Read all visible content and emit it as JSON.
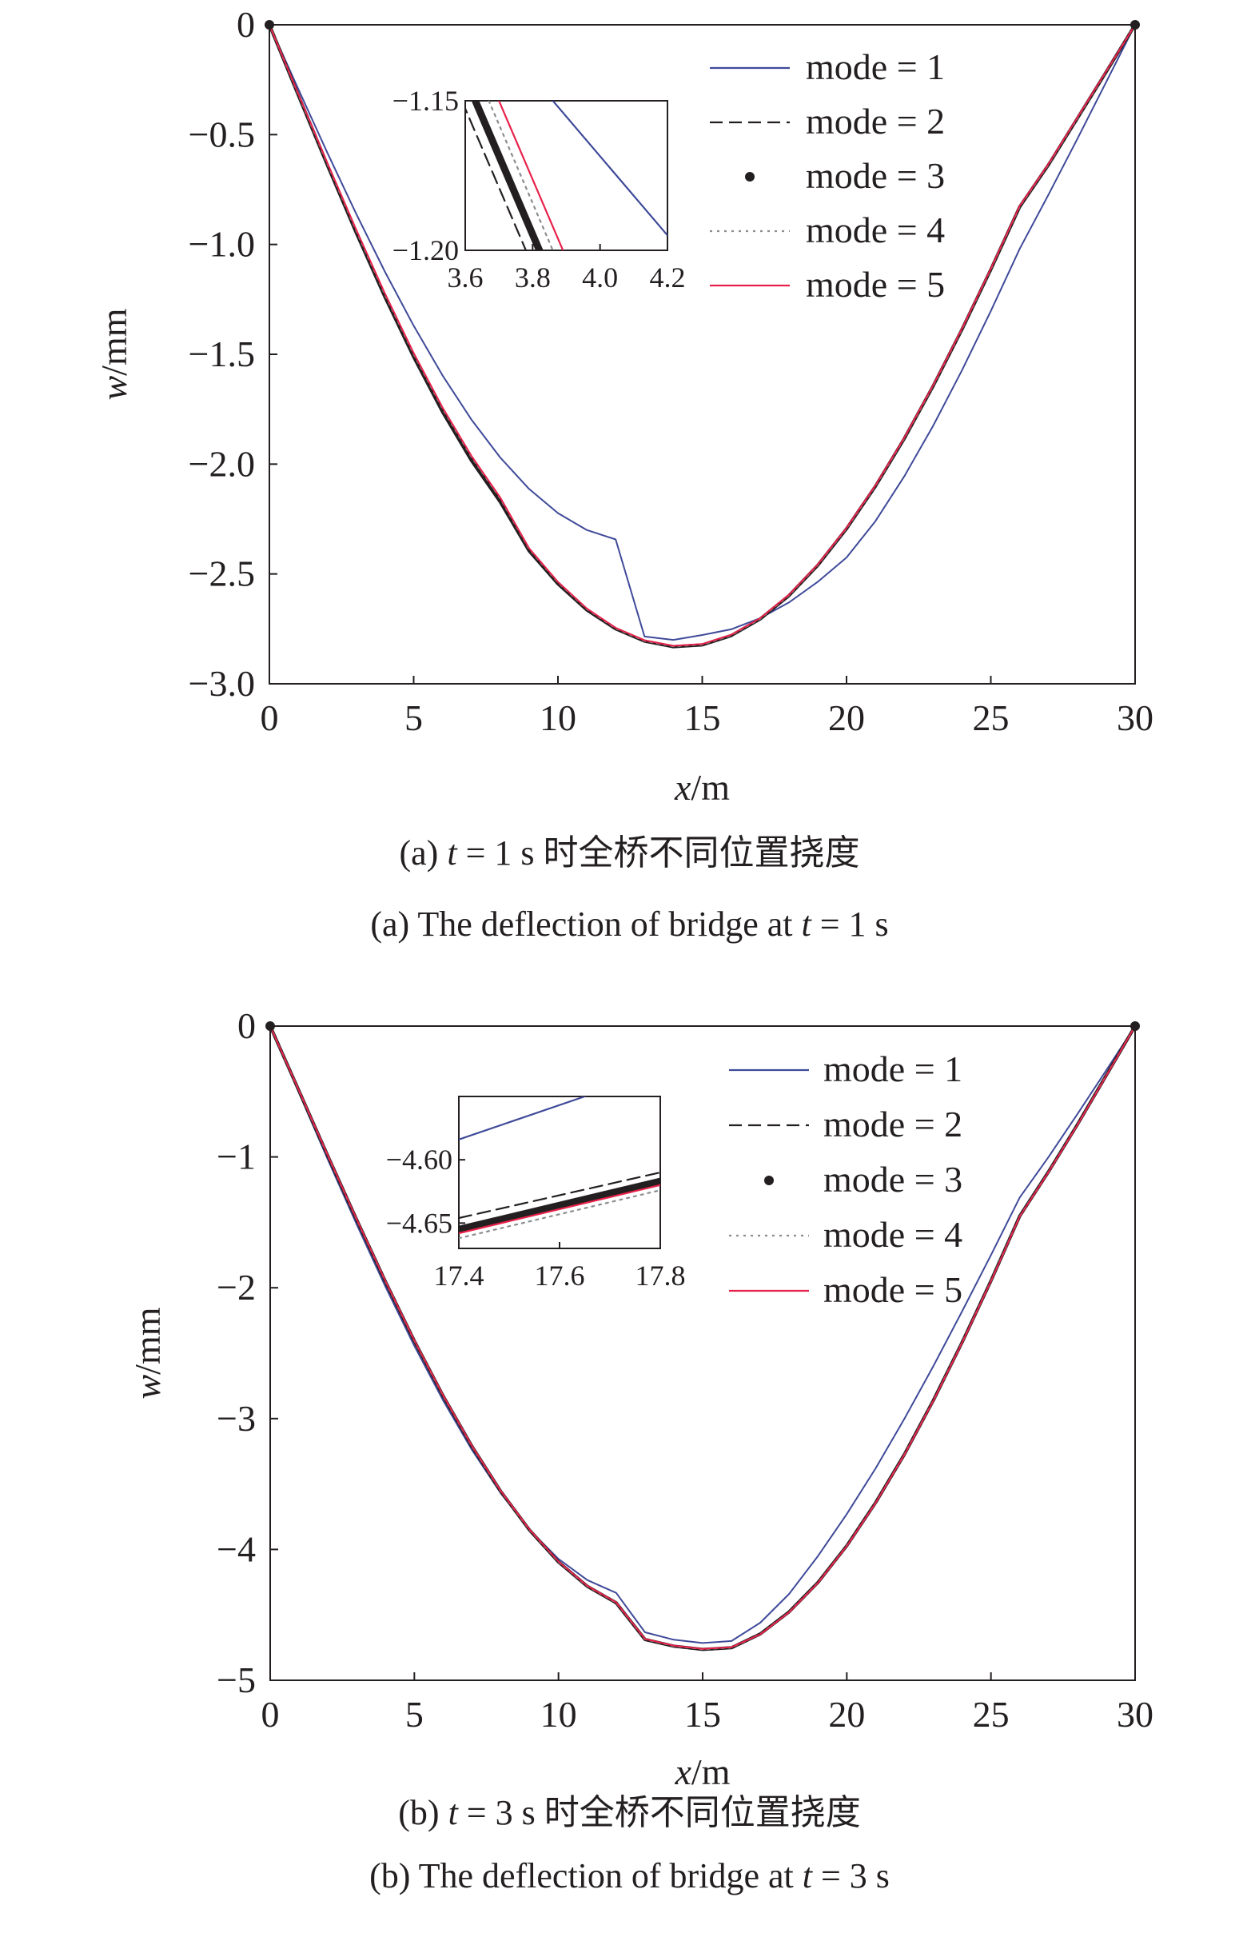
{
  "figure": {
    "captions": [
      {
        "zh_prefix": "(a) ",
        "zh_var": "t",
        "zh_suffix": " = 1 s 时全桥不同位置挠度",
        "en_prefix": "(a) The deflection of bridge at ",
        "en_var": "t",
        "en_suffix": " = 1 s"
      },
      {
        "zh_prefix": "(b) ",
        "zh_var": "t",
        "zh_suffix": " = 3 s 时全桥不同位置挠度",
        "en_prefix": "(b) The deflection of bridge at ",
        "en_var": "t",
        "en_suffix": " = 3 s"
      }
    ]
  },
  "chart_data": [
    {
      "type": "line",
      "xlabel_var": "x",
      "xlabel_unit": "/m",
      "ylabel_var": "w",
      "ylabel_unit": "/mm",
      "xlim": [
        0,
        30
      ],
      "ylim": [
        -3.0,
        0
      ],
      "xticks": [
        0,
        5,
        10,
        15,
        20,
        25,
        30
      ],
      "xtick_labels": [
        "0",
        "5",
        "10",
        "15",
        "20",
        "25",
        "30"
      ],
      "yticks": [
        0,
        -0.5,
        -1.0,
        -1.5,
        -2.0,
        -2.5,
        -3.0
      ],
      "ytick_labels": [
        "0",
        "−0.5",
        "−1.0",
        "−1.5",
        "−2.0",
        "−2.5",
        "−3.0"
      ],
      "legend_position": "top-right",
      "series": [
        {
          "name": "mode = 1",
          "style": "solid",
          "color": "#3f4a99",
          "x": [
            0,
            1,
            2,
            3,
            4,
            5,
            6,
            7,
            8,
            9,
            10,
            11,
            12,
            13,
            14,
            15,
            16,
            17,
            18,
            19,
            20,
            21,
            22,
            23,
            24,
            25,
            26,
            27,
            28,
            29,
            30
          ],
          "y": [
            0,
            -0.292,
            -0.58,
            -0.858,
            -1.123,
            -1.37,
            -1.596,
            -1.797,
            -1.97,
            -2.113,
            -2.223,
            -2.3,
            -2.343,
            -2.785,
            -2.8,
            -2.778,
            -2.752,
            -2.702,
            -2.63,
            -2.536,
            -2.425,
            -2.26,
            -2.056,
            -1.826,
            -1.573,
            -1.303,
            -1.02,
            -0.773,
            -0.519,
            -0.26,
            0
          ]
        },
        {
          "name": "mode = 2",
          "style": "dashed",
          "color": "#231f20",
          "x": [
            0,
            1,
            2,
            3,
            4,
            5,
            6,
            7,
            8,
            9,
            10,
            11,
            12,
            13,
            14,
            15,
            16,
            17,
            18,
            19,
            20,
            21,
            22,
            23,
            24,
            25,
            26,
            27,
            28,
            29,
            30
          ],
          "y": [
            0,
            -0.318,
            -0.632,
            -0.938,
            -1.23,
            -1.502,
            -1.75,
            -1.97,
            -2.158,
            -2.387,
            -2.54,
            -2.66,
            -2.748,
            -2.805,
            -2.83,
            -2.822,
            -2.78,
            -2.705,
            -2.598,
            -2.46,
            -2.293,
            -2.1,
            -1.883,
            -1.644,
            -1.386,
            -1.113,
            -0.828,
            -0.636,
            -0.425,
            -0.213,
            0
          ]
        },
        {
          "name": "mode = 3",
          "style": "thick-dots",
          "color": "#231f20",
          "x": [
            0,
            1,
            2,
            3,
            4,
            5,
            6,
            7,
            8,
            9,
            10,
            11,
            12,
            13,
            14,
            15,
            16,
            17,
            18,
            19,
            20,
            21,
            22,
            23,
            24,
            25,
            26,
            27,
            28,
            29,
            30
          ],
          "y": [
            0,
            -0.32,
            -0.636,
            -0.944,
            -1.238,
            -1.512,
            -1.762,
            -1.983,
            -2.172,
            -2.395,
            -2.545,
            -2.664,
            -2.75,
            -2.806,
            -2.831,
            -2.823,
            -2.781,
            -2.706,
            -2.599,
            -2.461,
            -2.294,
            -2.101,
            -1.884,
            -1.645,
            -1.387,
            -1.114,
            -0.829,
            -0.637,
            -0.426,
            -0.214,
            0
          ]
        },
        {
          "name": "mode = 4",
          "style": "dotted",
          "color": "#8a8c8e",
          "x": [
            0,
            1,
            2,
            3,
            4,
            5,
            6,
            7,
            8,
            9,
            10,
            11,
            12,
            13,
            14,
            15,
            16,
            17,
            18,
            19,
            20,
            21,
            22,
            23,
            24,
            25,
            26,
            27,
            28,
            29,
            30
          ],
          "y": [
            0,
            -0.316,
            -0.629,
            -0.934,
            -1.226,
            -1.498,
            -1.746,
            -1.966,
            -2.155,
            -2.385,
            -2.538,
            -2.659,
            -2.747,
            -2.804,
            -2.829,
            -2.821,
            -2.779,
            -2.704,
            -2.597,
            -2.459,
            -2.292,
            -2.099,
            -1.882,
            -1.643,
            -1.385,
            -1.112,
            -0.827,
            -0.635,
            -0.424,
            -0.212,
            0
          ]
        },
        {
          "name": "mode = 5",
          "style": "solid",
          "color": "#e8214a",
          "x": [
            0,
            1,
            2,
            3,
            4,
            5,
            6,
            7,
            8,
            9,
            10,
            11,
            12,
            13,
            14,
            15,
            16,
            17,
            18,
            19,
            20,
            21,
            22,
            23,
            24,
            25,
            26,
            27,
            28,
            29,
            30
          ],
          "y": [
            0,
            -0.314,
            -0.626,
            -0.93,
            -1.222,
            -1.494,
            -1.742,
            -1.962,
            -2.152,
            -2.383,
            -2.536,
            -2.657,
            -2.745,
            -2.802,
            -2.827,
            -2.819,
            -2.777,
            -2.702,
            -2.595,
            -2.457,
            -2.29,
            -2.097,
            -1.88,
            -1.641,
            -1.383,
            -1.11,
            -0.825,
            -0.633,
            -0.422,
            -0.211,
            0
          ]
        }
      ],
      "inset": {
        "xlim": [
          3.6,
          4.2
        ],
        "ylim": [
          -1.2,
          -1.15
        ],
        "xticks": [
          3.6,
          3.8,
          4.0,
          4.2
        ],
        "xtick_labels": [
          "3.6",
          "3.8",
          "4.0",
          "4.2"
        ],
        "yticks": [
          -1.15,
          -1.2
        ],
        "ytick_labels": [
          "−1.15",
          "−1.20"
        ],
        "series": [
          {
            "name": "mode = 1",
            "x": [
              3.86,
              4.2
            ],
            "y": [
              -1.15,
              -1.195
            ]
          },
          {
            "name": "mode = 2",
            "x": [
              3.59,
              3.78
            ],
            "y": [
              -1.15,
              -1.2
            ]
          },
          {
            "name": "mode = 3",
            "x": [
              3.63,
              3.82
            ],
            "y": [
              -1.15,
              -1.2
            ]
          },
          {
            "name": "mode = 4",
            "x": [
              3.67,
              3.86
            ],
            "y": [
              -1.15,
              -1.2
            ]
          },
          {
            "name": "mode = 5",
            "x": [
              3.7,
              3.89
            ],
            "y": [
              -1.15,
              -1.2
            ]
          }
        ]
      }
    },
    {
      "type": "line",
      "xlabel_var": "x",
      "xlabel_unit": "/m",
      "ylabel_var": "w",
      "ylabel_unit": "/mm",
      "xlim": [
        0,
        30
      ],
      "ylim": [
        -5,
        0
      ],
      "xticks": [
        0,
        5,
        10,
        15,
        20,
        25,
        30
      ],
      "xtick_labels": [
        "0",
        "5",
        "10",
        "15",
        "20",
        "25",
        "30"
      ],
      "yticks": [
        0,
        -1,
        -2,
        -3,
        -4,
        -5
      ],
      "ytick_labels": [
        "0",
        "−1",
        "−2",
        "−3",
        "−4",
        "−5"
      ],
      "legend_position": "top-right",
      "series": [
        {
          "name": "mode = 1",
          "style": "solid",
          "color": "#3f4a99",
          "x": [
            0,
            1,
            2,
            3,
            4,
            5,
            6,
            7,
            8,
            9,
            10,
            11,
            12,
            13,
            14,
            15,
            16,
            17,
            18,
            19,
            20,
            21,
            22,
            23,
            24,
            25,
            26,
            27,
            28,
            29,
            30
          ],
          "y": [
            0,
            -0.512,
            -1.02,
            -1.516,
            -1.993,
            -2.444,
            -2.862,
            -3.24,
            -3.571,
            -3.851,
            -4.073,
            -4.234,
            -4.332,
            -4.633,
            -4.69,
            -4.715,
            -4.7,
            -4.56,
            -4.34,
            -4.05,
            -3.73,
            -3.38,
            -3.0,
            -2.6,
            -2.18,
            -1.75,
            -1.31,
            -1.0,
            -0.672,
            -0.338,
            0
          ]
        },
        {
          "name": "mode = 2",
          "style": "dashed",
          "color": "#231f20",
          "x": [
            0,
            1,
            2,
            3,
            4,
            5,
            6,
            7,
            8,
            9,
            10,
            11,
            12,
            13,
            14,
            15,
            16,
            17,
            18,
            19,
            20,
            21,
            22,
            23,
            24,
            25,
            26,
            27,
            28,
            29,
            30
          ],
          "y": [
            0,
            -0.5,
            -0.998,
            -1.487,
            -1.962,
            -2.413,
            -2.835,
            -3.22,
            -3.563,
            -3.858,
            -4.1,
            -4.285,
            -4.41,
            -4.69,
            -4.74,
            -4.765,
            -4.752,
            -4.645,
            -4.475,
            -4.25,
            -3.97,
            -3.64,
            -3.27,
            -2.86,
            -2.415,
            -1.945,
            -1.45,
            -1.11,
            -0.75,
            -0.375,
            0
          ]
        },
        {
          "name": "mode = 3",
          "style": "thick-dots",
          "color": "#231f20",
          "x": [
            0,
            1,
            2,
            3,
            4,
            5,
            6,
            7,
            8,
            9,
            10,
            11,
            12,
            13,
            14,
            15,
            16,
            17,
            18,
            19,
            20,
            21,
            22,
            23,
            24,
            25,
            26,
            27,
            28,
            29,
            30
          ],
          "y": [
            0,
            -0.496,
            -0.992,
            -1.48,
            -1.954,
            -2.405,
            -2.827,
            -3.213,
            -3.557,
            -3.853,
            -4.096,
            -4.282,
            -4.408,
            -4.688,
            -4.739,
            -4.764,
            -4.751,
            -4.646,
            -4.477,
            -4.252,
            -3.972,
            -3.642,
            -3.272,
            -2.862,
            -2.417,
            -1.947,
            -1.452,
            -1.112,
            -0.752,
            -0.377,
            0
          ]
        },
        {
          "name": "mode = 4",
          "style": "dotted",
          "color": "#8a8c8e",
          "x": [
            0,
            1,
            2,
            3,
            4,
            5,
            6,
            7,
            8,
            9,
            10,
            11,
            12,
            13,
            14,
            15,
            16,
            17,
            18,
            19,
            20,
            21,
            22,
            23,
            24,
            25,
            26,
            27,
            28,
            29,
            30
          ],
          "y": [
            0,
            -0.494,
            -0.99,
            -1.478,
            -1.952,
            -2.403,
            -2.825,
            -3.211,
            -3.555,
            -3.851,
            -4.094,
            -4.28,
            -4.406,
            -4.686,
            -4.737,
            -4.762,
            -4.749,
            -4.648,
            -4.479,
            -4.254,
            -3.974,
            -3.644,
            -3.274,
            -2.864,
            -2.419,
            -1.949,
            -1.454,
            -1.114,
            -0.754,
            -0.379,
            0
          ]
        },
        {
          "name": "mode = 5",
          "style": "solid",
          "color": "#e8214a",
          "x": [
            0,
            1,
            2,
            3,
            4,
            5,
            6,
            7,
            8,
            9,
            10,
            11,
            12,
            13,
            14,
            15,
            16,
            17,
            18,
            19,
            20,
            21,
            22,
            23,
            24,
            25,
            26,
            27,
            28,
            29,
            30
          ],
          "y": [
            0,
            -0.493,
            -0.988,
            -1.476,
            -1.95,
            -2.401,
            -2.823,
            -3.209,
            -3.553,
            -3.849,
            -4.092,
            -4.278,
            -4.404,
            -4.684,
            -4.735,
            -4.76,
            -4.747,
            -4.649,
            -4.48,
            -4.255,
            -3.975,
            -3.645,
            -3.275,
            -2.865,
            -2.42,
            -1.95,
            -1.455,
            -1.115,
            -0.755,
            -0.38,
            0
          ]
        }
      ],
      "inset": {
        "xlim": [
          17.4,
          17.8
        ],
        "ylim": [
          -4.67,
          -4.55
        ],
        "xticks": [
          17.4,
          17.6,
          17.8
        ],
        "xtick_labels": [
          "17.4",
          "17.6",
          "17.8"
        ],
        "yticks": [
          -4.6,
          -4.65
        ],
        "ytick_labels": [
          "−4.60",
          "−4.65"
        ],
        "series": [
          {
            "name": "mode = 1",
            "x": [
              17.4,
              17.65
            ],
            "y": [
              -4.584,
              -4.55
            ]
          },
          {
            "name": "mode = 2",
            "x": [
              17.4,
              17.8
            ],
            "y": [
              -4.646,
              -4.61
            ]
          },
          {
            "name": "mode = 3",
            "x": [
              17.4,
              17.8
            ],
            "y": [
              -4.655,
              -4.617
            ]
          },
          {
            "name": "mode = 4",
            "x": [
              17.4,
              17.8
            ],
            "y": [
              -4.662,
              -4.624
            ]
          },
          {
            "name": "mode = 5",
            "x": [
              17.4,
              17.8
            ],
            "y": [
              -4.658,
              -4.62
            ]
          }
        ]
      }
    }
  ]
}
